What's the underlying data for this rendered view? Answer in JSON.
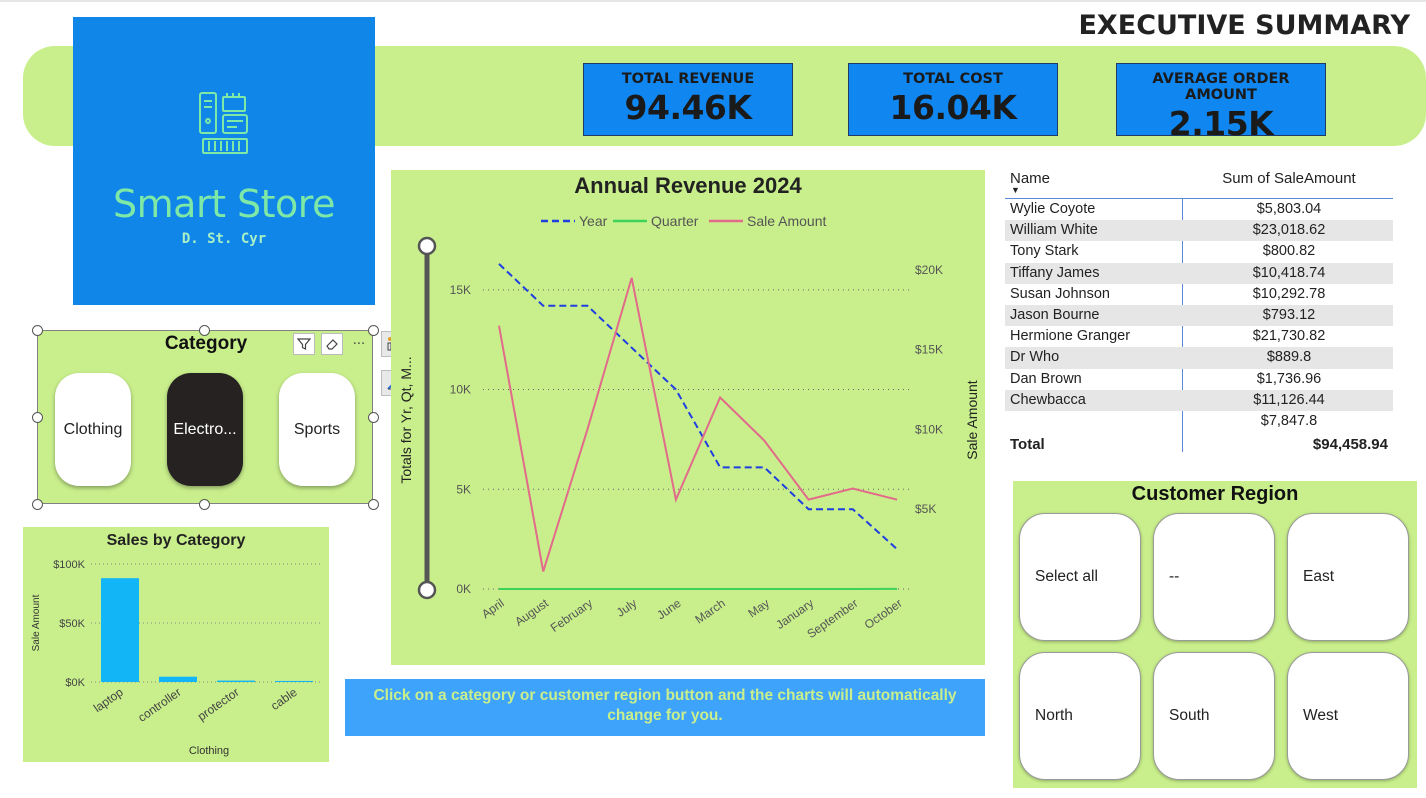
{
  "header": {
    "title": "EXECUTIVE SUMMARY"
  },
  "logo": {
    "name": "Smart Store",
    "author": "D. St. Cyr",
    "icon": "computer-hardware-icon"
  },
  "kpis": [
    {
      "label": "TOTAL REVENUE",
      "value": "94.46K"
    },
    {
      "label": "TOTAL COST",
      "value": "16.04K"
    },
    {
      "label": "AVERAGE ORDER AMOUNT",
      "value": "2.15K"
    }
  ],
  "category_slicer": {
    "title": "Category",
    "options": [
      {
        "label": "Clothing",
        "selected": false
      },
      {
        "label": "Electro...",
        "selected": true
      },
      {
        "label": "Sports",
        "selected": false
      }
    ],
    "toolbar_icons": [
      "filter-icon",
      "eraser-icon",
      "more-options-icon"
    ]
  },
  "side_tools": [
    "format-visual-icon",
    "build-visual-icon"
  ],
  "sales_by_category": {
    "chart_data": {
      "type": "bar",
      "title": "Sales by Category",
      "xlabel": "Clothing",
      "ylabel": "Sale Amount",
      "categories": [
        "laptop",
        "controller",
        "protector",
        "cable"
      ],
      "values": [
        88000,
        4500,
        1200,
        900
      ],
      "ylim": [
        0,
        100000
      ],
      "yticks": [
        "$0K",
        "$50K",
        "$100K"
      ],
      "color": "#12b5f5",
      "grid": true
    }
  },
  "annual_revenue": {
    "chart_data": {
      "type": "line",
      "title": "Annual Revenue 2024",
      "ylabel": "Totals for Yr, Qt, M...",
      "y2label": "Sale Amount",
      "categories": [
        "April",
        "August",
        "February",
        "July",
        "June",
        "March",
        "May",
        "January",
        "September",
        "October"
      ],
      "series": [
        {
          "name": "Year",
          "axis": "left",
          "color": "#1f3fe0",
          "dash": true,
          "values": [
            16300,
            14200,
            14200,
            12100,
            10000,
            6100,
            6100,
            4000,
            4000,
            2000
          ]
        },
        {
          "name": "Quarter",
          "axis": "left",
          "color": "#3fd25a",
          "dash": false,
          "values": [
            3,
            3,
            2,
            3,
            2,
            1,
            2,
            1,
            3,
            4
          ]
        },
        {
          "name": "Sale Amount",
          "axis": "right",
          "color": "#e26a8a",
          "dash": false,
          "values": [
            16500,
            1100,
            10000,
            19500,
            5600,
            12000,
            9300,
            5600,
            6300,
            5600
          ]
        }
      ],
      "ylim": [
        0,
        18000
      ],
      "y2lim": [
        0,
        22500
      ],
      "yticks": [
        "0K",
        "5K",
        "10K",
        "15K"
      ],
      "y2ticks": [
        "$5K",
        "$10K",
        "$15K",
        "$20K"
      ],
      "grid": true,
      "legend": "top"
    }
  },
  "table": {
    "headers": [
      "Name",
      "Sum of SaleAmount"
    ],
    "rows": [
      [
        "Wylie Coyote",
        "$5,803.04"
      ],
      [
        "William White",
        "$23,018.62"
      ],
      [
        "Tony Stark",
        "$800.82"
      ],
      [
        "Tiffany James",
        "$10,418.74"
      ],
      [
        "Susan Johnson",
        "$10,292.78"
      ],
      [
        "Jason Bourne",
        "$793.12"
      ],
      [
        "Hermione Granger",
        "$21,730.82"
      ],
      [
        "Dr Who",
        "$889.8"
      ],
      [
        "Dan Brown",
        "$1,736.96"
      ],
      [
        "Chewbacca",
        "$11,126.44"
      ],
      [
        "",
        "$7,847.8"
      ]
    ],
    "total_label": "Total",
    "total_value": "$94,458.94"
  },
  "region_slicer": {
    "title": "Customer Region",
    "options": [
      "Select all",
      "--",
      "East",
      "North",
      "South",
      "West"
    ]
  },
  "info_banner": "Click on a category or customer region button and the charts will automatically change for you."
}
